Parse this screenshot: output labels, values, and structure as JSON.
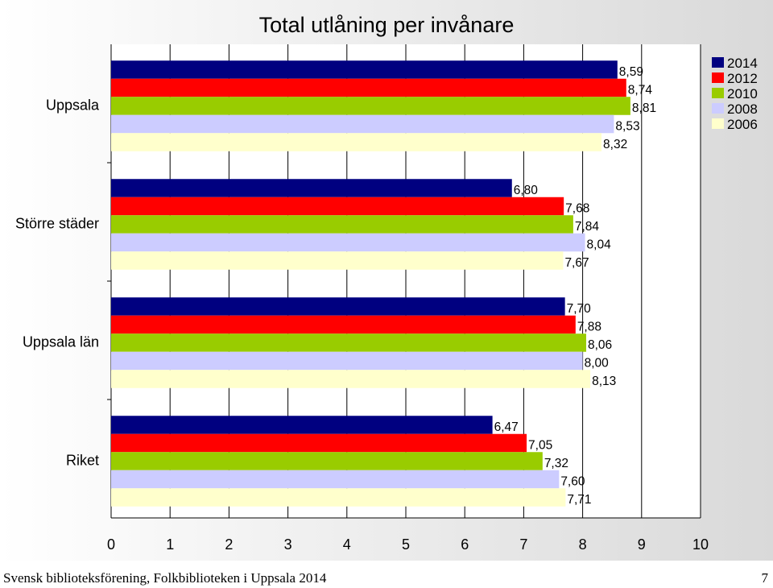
{
  "chart_data": {
    "type": "bar",
    "orientation": "horizontal",
    "title": "Total utlåning per invånare",
    "categories": [
      "Uppsala",
      "Större städer",
      "Uppsala län",
      "Riket"
    ],
    "series": [
      {
        "name": "2014",
        "color": "#000080",
        "values": [
          "8,59",
          "6,80",
          "7,70",
          "6,47"
        ]
      },
      {
        "name": "2012",
        "color": "#ff0000",
        "values": [
          "8,74",
          "7,68",
          "7,88",
          "7,05"
        ]
      },
      {
        "name": "2010",
        "color": "#99cc00",
        "values": [
          "8,81",
          "7,84",
          "8,06",
          "7,32"
        ]
      },
      {
        "name": "2008",
        "color": "#ccccff",
        "values": [
          "8,53",
          "8,04",
          "8,00",
          "7,60"
        ]
      },
      {
        "name": "2006",
        "color": "#ffffcc",
        "values": [
          "8,32",
          "7,67",
          "8,13",
          "7,71"
        ]
      }
    ],
    "xlim": [
      0,
      10
    ],
    "xticks": [
      "0",
      "1",
      "2",
      "3",
      "4",
      "5",
      "6",
      "7",
      "8",
      "9",
      "10"
    ],
    "grid": true,
    "legend": "top-right"
  },
  "footer": {
    "left": "Svensk biblioteksförening, Folkbiblioteken i Uppsala 2014",
    "page_number": "7"
  }
}
